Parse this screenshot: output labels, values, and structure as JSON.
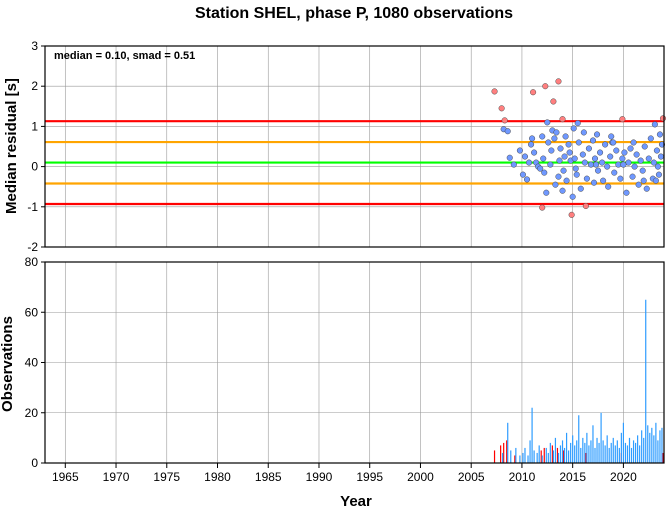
{
  "chart_data": [
    {
      "type": "scatter",
      "title": "Station SHEL, phase P, 1080 observations",
      "ylabel": "Median residual [s]",
      "ylim": [
        -2,
        3
      ],
      "xlim": [
        1963,
        2024
      ],
      "grid": true,
      "yticks": [
        "3",
        "2",
        "1",
        "0",
        "-1",
        "-2"
      ],
      "annotation": "median = 0.10, smad = 0.51",
      "reference_lines": [
        {
          "y": 1.13,
          "color": "#ff0000"
        },
        {
          "y": 0.61,
          "color": "#ffa500"
        },
        {
          "y": 0.1,
          "color": "#00ff00"
        },
        {
          "y": -0.42,
          "color": "#ffa500"
        },
        {
          "y": -0.93,
          "color": "#ff0000"
        }
      ],
      "series": [
        {
          "color": "#6f98ff",
          "points": [
            [
              2008.2,
              0.93
            ],
            [
              2008.6,
              0.88
            ],
            [
              2008.8,
              0.22
            ],
            [
              2009.2,
              0.05
            ],
            [
              2009.8,
              0.4
            ],
            [
              2010.1,
              -0.2
            ],
            [
              2010.3,
              0.25
            ],
            [
              2010.5,
              -0.32
            ],
            [
              2010.9,
              0.55
            ],
            [
              2011.2,
              0.35
            ],
            [
              2011.4,
              0.1
            ],
            [
              2011.6,
              0.0
            ],
            [
              2011.8,
              -0.05
            ],
            [
              2012.0,
              0.75
            ],
            [
              2012.1,
              0.2
            ],
            [
              2012.2,
              -0.15
            ],
            [
              2012.4,
              -0.65
            ],
            [
              2012.5,
              1.1
            ],
            [
              2012.6,
              0.6
            ],
            [
              2012.8,
              0.05
            ],
            [
              2013.0,
              0.9
            ],
            [
              2013.2,
              0.7
            ],
            [
              2013.3,
              -0.45
            ],
            [
              2013.4,
              0.85
            ],
            [
              2013.6,
              -0.25
            ],
            [
              2013.8,
              0.45
            ],
            [
              2014.0,
              -0.6
            ],
            [
              2014.1,
              -0.1
            ],
            [
              2014.2,
              0.25
            ],
            [
              2014.3,
              0.75
            ],
            [
              2014.4,
              -0.35
            ],
            [
              2014.6,
              0.55
            ],
            [
              2014.8,
              0.15
            ],
            [
              2015.0,
              -0.75
            ],
            [
              2015.1,
              0.95
            ],
            [
              2015.2,
              0.2
            ],
            [
              2015.4,
              -0.2
            ],
            [
              2015.5,
              1.08
            ],
            [
              2015.6,
              0.6
            ],
            [
              2015.8,
              -0.55
            ],
            [
              2016.0,
              0.3
            ],
            [
              2016.2,
              0.1
            ],
            [
              2016.4,
              -0.3
            ],
            [
              2016.6,
              0.45
            ],
            [
              2016.8,
              0.05
            ],
            [
              2017.0,
              0.65
            ],
            [
              2017.1,
              -0.4
            ],
            [
              2017.2,
              0.2
            ],
            [
              2017.4,
              0.8
            ],
            [
              2017.5,
              -0.1
            ],
            [
              2017.7,
              0.35
            ],
            [
              2017.9,
              0.1
            ],
            [
              2018.0,
              -0.35
            ],
            [
              2018.2,
              0.55
            ],
            [
              2018.4,
              0.0
            ],
            [
              2018.5,
              -0.5
            ],
            [
              2018.7,
              0.25
            ],
            [
              2018.9,
              0.6
            ],
            [
              2019.1,
              -0.15
            ],
            [
              2019.3,
              0.4
            ],
            [
              2019.5,
              0.05
            ],
            [
              2019.7,
              -0.3
            ],
            [
              2019.9,
              0.2
            ],
            [
              2020.1,
              0.35
            ],
            [
              2020.3,
              -0.65
            ],
            [
              2020.5,
              0.1
            ],
            [
              2020.7,
              0.45
            ],
            [
              2020.9,
              -0.25
            ],
            [
              2021.1,
              0.0
            ],
            [
              2021.3,
              0.3
            ],
            [
              2021.5,
              -0.45
            ],
            [
              2021.7,
              0.15
            ],
            [
              2021.9,
              -0.1
            ],
            [
              2022.1,
              0.5
            ],
            [
              2022.3,
              -0.55
            ],
            [
              2022.5,
              0.2
            ],
            [
              2022.7,
              0.7
            ],
            [
              2022.9,
              -0.3
            ],
            [
              2023.0,
              0.1
            ],
            [
              2023.1,
              1.05
            ],
            [
              2023.2,
              -0.35
            ],
            [
              2023.3,
              0.4
            ],
            [
              2023.4,
              0.0
            ],
            [
              2023.5,
              -0.2
            ],
            [
              2023.6,
              0.8
            ],
            [
              2023.7,
              0.25
            ],
            [
              2023.8,
              0.55
            ],
            [
              2011.0,
              0.7
            ],
            [
              2013.7,
              0.15
            ],
            [
              2016.1,
              0.85
            ],
            [
              2018.8,
              0.75
            ],
            [
              2020.0,
              0.05
            ],
            [
              2021.0,
              0.6
            ],
            [
              2022.0,
              -0.35
            ],
            [
              2015.3,
              -0.05
            ],
            [
              2014.7,
              0.35
            ],
            [
              2017.3,
              0.05
            ],
            [
              2019.0,
              0.6
            ],
            [
              2012.9,
              0.4
            ],
            [
              2010.7,
              0.1
            ]
          ]
        },
        {
          "color": "#ff7f7f",
          "points": [
            [
              2007.3,
              1.87
            ],
            [
              2008.0,
              1.45
            ],
            [
              2008.3,
              1.15
            ],
            [
              2011.1,
              1.85
            ],
            [
              2012.0,
              -1.02
            ],
            [
              2012.3,
              2.0
            ],
            [
              2013.1,
              1.62
            ],
            [
              2013.6,
              2.12
            ],
            [
              2014.0,
              1.18
            ],
            [
              2014.9,
              -1.2
            ],
            [
              2016.3,
              -0.98
            ],
            [
              2019.9,
              1.18
            ],
            [
              2023.9,
              1.2
            ]
          ]
        }
      ]
    },
    {
      "type": "bar",
      "xlabel": "Year",
      "ylabel": "Observations",
      "ylim": [
        0,
        80
      ],
      "xlim": [
        1963,
        2024
      ],
      "grid": true,
      "xticks": [
        "1965",
        "1970",
        "1975",
        "1980",
        "1985",
        "1990",
        "1995",
        "2000",
        "2005",
        "2010",
        "2015",
        "2020"
      ],
      "yticks": [
        "80",
        "60",
        "40",
        "20",
        "0"
      ],
      "series": [
        {
          "color": "#ff0000",
          "bars": [
            [
              2007.3,
              5
            ],
            [
              2007.9,
              7
            ],
            [
              2008.2,
              8
            ],
            [
              2008.5,
              9
            ],
            [
              2009.3,
              3
            ],
            [
              2011.9,
              5
            ],
            [
              2012.2,
              6
            ],
            [
              2013.0,
              7
            ],
            [
              2013.5,
              6
            ],
            [
              2014.1,
              5
            ],
            [
              2016.3,
              4
            ],
            [
              2019.8,
              4
            ],
            [
              2023.9,
              4
            ]
          ]
        },
        {
          "color": "#2e9cff",
          "bars": [
            [
              2008.1,
              4
            ],
            [
              2008.6,
              16
            ],
            [
              2008.9,
              5
            ],
            [
              2009.4,
              6
            ],
            [
              2009.8,
              3
            ],
            [
              2010.1,
              4
            ],
            [
              2010.3,
              6
            ],
            [
              2010.6,
              3
            ],
            [
              2010.8,
              9
            ],
            [
              2011.0,
              22
            ],
            [
              2011.2,
              5
            ],
            [
              2011.5,
              4
            ],
            [
              2011.7,
              7
            ],
            [
              2012.0,
              3
            ],
            [
              2012.4,
              6
            ],
            [
              2012.6,
              4
            ],
            [
              2012.8,
              8
            ],
            [
              2013.1,
              5
            ],
            [
              2013.3,
              10
            ],
            [
              2013.6,
              4
            ],
            [
              2013.8,
              7
            ],
            [
              2014.0,
              9
            ],
            [
              2014.2,
              6
            ],
            [
              2014.4,
              12
            ],
            [
              2014.6,
              5
            ],
            [
              2014.8,
              8
            ],
            [
              2015.0,
              11
            ],
            [
              2015.2,
              7
            ],
            [
              2015.4,
              9
            ],
            [
              2015.6,
              19
            ],
            [
              2015.8,
              6
            ],
            [
              2016.0,
              10
            ],
            [
              2016.2,
              8
            ],
            [
              2016.4,
              12
            ],
            [
              2016.6,
              7
            ],
            [
              2016.8,
              9
            ],
            [
              2017.0,
              15
            ],
            [
              2017.2,
              6
            ],
            [
              2017.4,
              10
            ],
            [
              2017.6,
              8
            ],
            [
              2017.8,
              20
            ],
            [
              2018.0,
              9
            ],
            [
              2018.2,
              7
            ],
            [
              2018.4,
              11
            ],
            [
              2018.6,
              6
            ],
            [
              2018.8,
              8
            ],
            [
              2019.0,
              10
            ],
            [
              2019.2,
              7
            ],
            [
              2019.4,
              9
            ],
            [
              2019.6,
              6
            ],
            [
              2019.8,
              12
            ],
            [
              2020.0,
              16
            ],
            [
              2020.2,
              8
            ],
            [
              2020.4,
              7
            ],
            [
              2020.6,
              10
            ],
            [
              2020.8,
              6
            ],
            [
              2021.0,
              9
            ],
            [
              2021.2,
              8
            ],
            [
              2021.4,
              11
            ],
            [
              2021.6,
              7
            ],
            [
              2021.8,
              13
            ],
            [
              2022.0,
              10
            ],
            [
              2022.2,
              65
            ],
            [
              2022.4,
              15
            ],
            [
              2022.6,
              12
            ],
            [
              2022.8,
              14
            ],
            [
              2023.0,
              11
            ],
            [
              2023.2,
              16
            ],
            [
              2023.4,
              9
            ],
            [
              2023.6,
              13
            ],
            [
              2023.8,
              14
            ]
          ]
        }
      ]
    }
  ]
}
